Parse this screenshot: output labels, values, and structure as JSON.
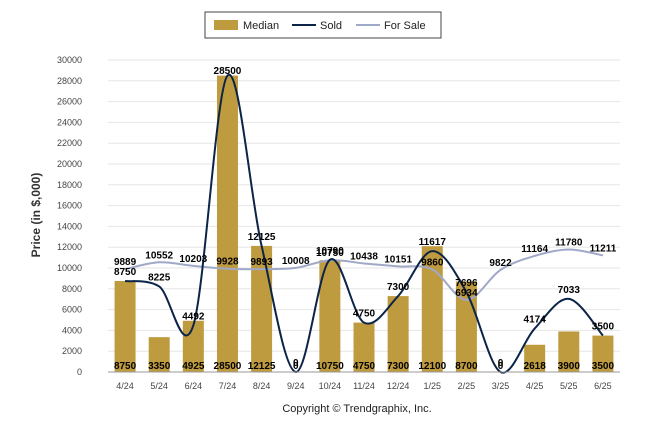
{
  "chart_data": {
    "type": "bar",
    "title": "",
    "ylabel": "Price (in $,000)",
    "xlabel": "",
    "ylim": [
      0,
      30000
    ],
    "yticks": [
      0,
      2000,
      4000,
      6000,
      8000,
      10000,
      12000,
      14000,
      16000,
      18000,
      20000,
      22000,
      24000,
      26000,
      28000,
      30000
    ],
    "grid": "horizontal",
    "legend_position": "top",
    "categories": [
      "4/24",
      "5/24",
      "6/24",
      "7/24",
      "8/24",
      "9/24",
      "10/24",
      "11/24",
      "12/24",
      "1/25",
      "2/25",
      "3/25",
      "4/25",
      "5/25",
      "6/25"
    ],
    "series": [
      {
        "name": "Median",
        "kind": "bar",
        "color": "#bf9b40",
        "values": [
          8750,
          3350,
          4925,
          28500,
          12125,
          0,
          10750,
          4750,
          7300,
          12100,
          8700,
          0,
          2618,
          3900,
          3500
        ]
      },
      {
        "name": "Sold",
        "kind": "smooth-line",
        "color": "#0b2447",
        "values": [
          8750,
          8225,
          4492,
          28500,
          12125,
          0,
          10790,
          4750,
          7300,
          11617,
          7696,
          0,
          4174,
          7033,
          3500
        ]
      },
      {
        "name": "For Sale",
        "kind": "smooth-line",
        "color": "#a0a8c8",
        "values": [
          9889,
          10552,
          10203,
          9928,
          9893,
          10008,
          10750,
          10438,
          10151,
          9860,
          6934,
          9822,
          11164,
          11780,
          11211
        ]
      }
    ],
    "footer": "Copyright © Trendgraphix, Inc."
  }
}
